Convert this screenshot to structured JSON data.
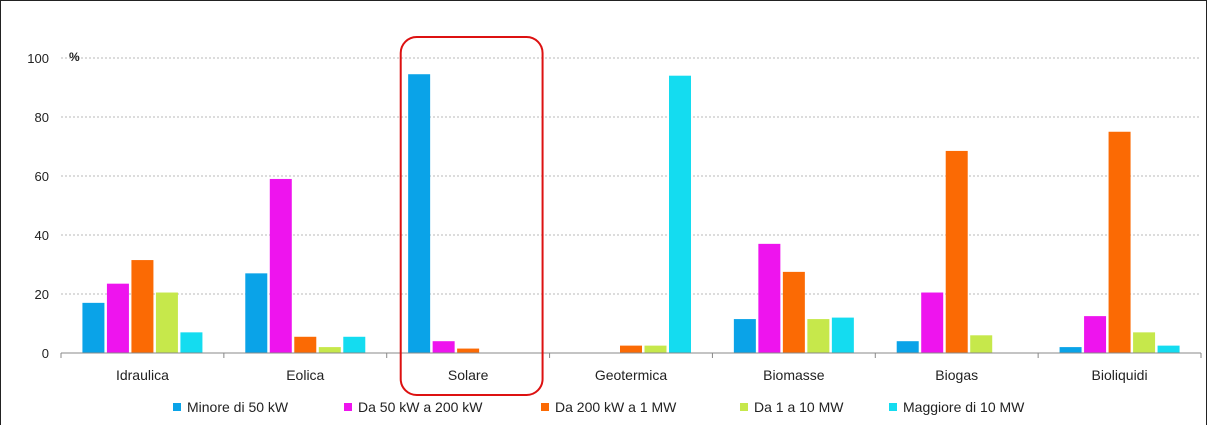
{
  "chart_data": {
    "type": "bar",
    "title": "",
    "xlabel": "",
    "ylabel": "%",
    "ylim": [
      0,
      100
    ],
    "yticks": [
      0,
      20,
      40,
      60,
      80,
      100
    ],
    "grid": true,
    "legend_position": "bottom",
    "categories": [
      "Idraulica",
      "Eolica",
      "Solare",
      "Geotermica",
      "Biomasse",
      "Biogas",
      "Bioliquidi"
    ],
    "highlighted_category": "Solare",
    "series": [
      {
        "name": "Minore di 50 kW",
        "color": "#0aa3e8",
        "values": [
          17,
          27,
          94.5,
          0,
          11.5,
          4,
          2
        ]
      },
      {
        "name": "Da 50 kW a 200 kW",
        "color": "#ee14ee",
        "values": [
          23.5,
          59,
          4,
          0,
          37,
          20.5,
          12.5
        ]
      },
      {
        "name": "Da 200 kW a 1 MW",
        "color": "#fb6a04",
        "values": [
          31.5,
          5.5,
          1.5,
          2.5,
          27.5,
          68.5,
          75
        ]
      },
      {
        "name": "Da 1 a 10 MW",
        "color": "#c6e84b",
        "values": [
          20.5,
          2,
          0,
          2.5,
          11.5,
          6,
          7
        ]
      },
      {
        "name": "Maggiore di 10 MW",
        "color": "#14dcf0",
        "values": [
          7,
          5.5,
          0,
          94,
          12,
          0,
          2.5
        ]
      }
    ],
    "highlight_color": "#dd1111"
  }
}
